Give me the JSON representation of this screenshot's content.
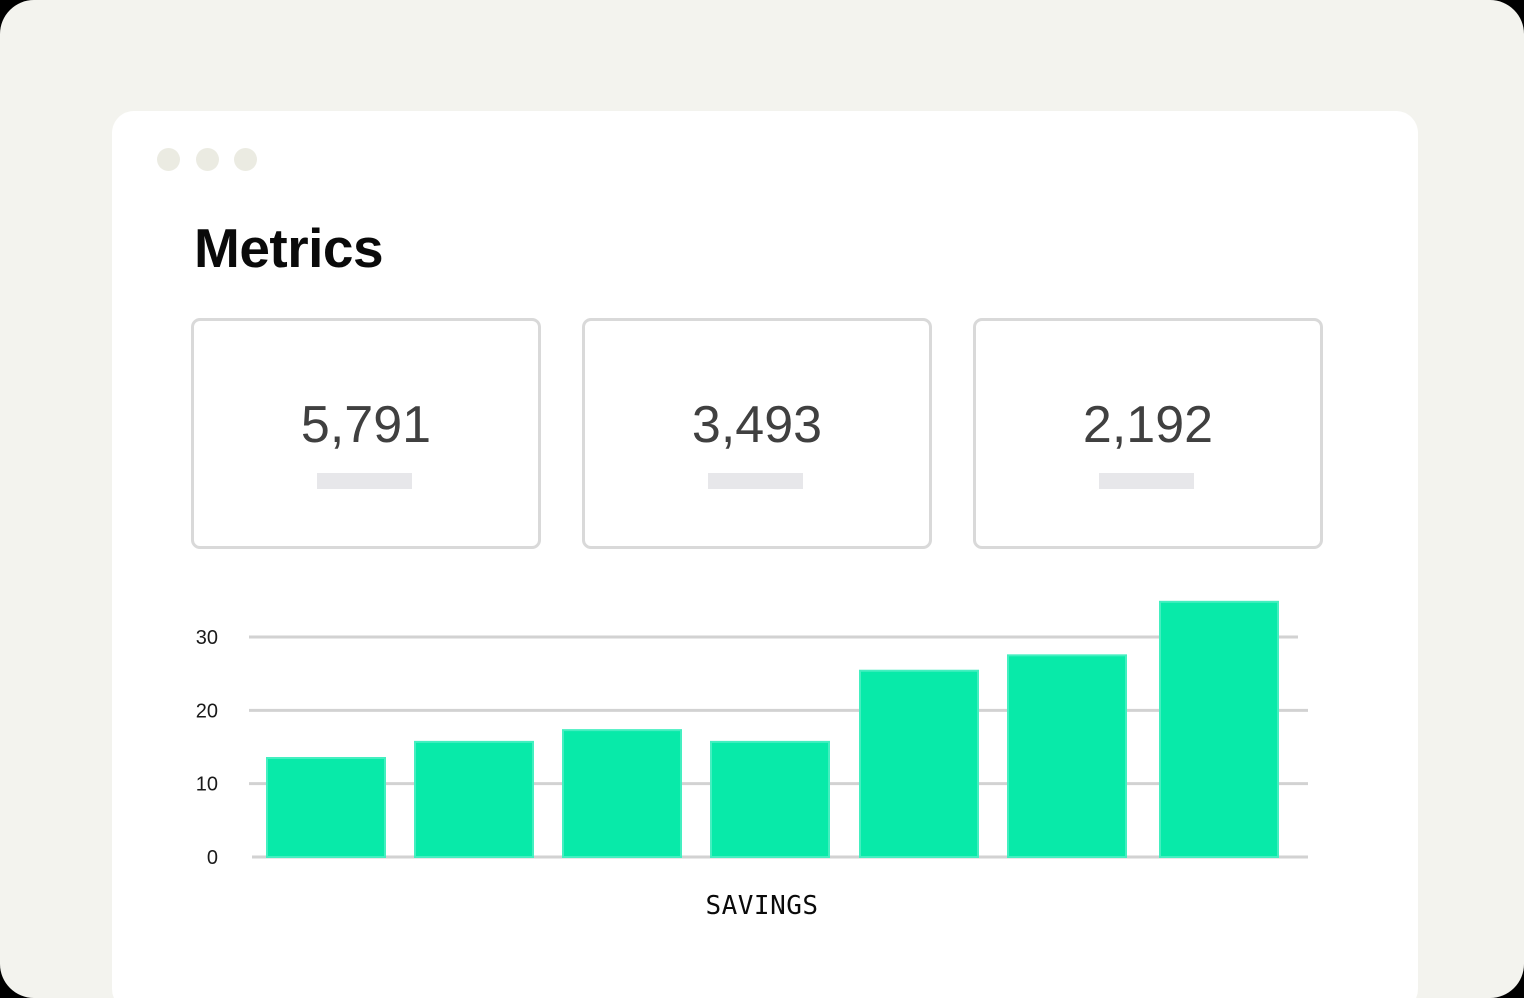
{
  "page": {
    "title": "Metrics"
  },
  "metrics": [
    {
      "value": "5,791"
    },
    {
      "value": "3,493"
    },
    {
      "value": "2,192"
    }
  ],
  "colors": {
    "bar": "#08eaa9",
    "bar_edge": "#44efc0",
    "grid": "#d2d2d2",
    "card_border": "#d9d9d9",
    "window_dot": "#ebebe2",
    "background": "#f3f3ee"
  },
  "chart_data": {
    "type": "bar",
    "categories": [
      "",
      "",
      "",
      "",
      "",
      "",
      ""
    ],
    "values": [
      13.5,
      15.7,
      17.3,
      15.7,
      25.4,
      27.5,
      34.8
    ],
    "xlabel": "SAVINGS",
    "ylabel": "",
    "yticks": [
      0,
      10,
      20,
      30
    ],
    "ylim": [
      0,
      30
    ],
    "grid": true,
    "legend": "none"
  }
}
